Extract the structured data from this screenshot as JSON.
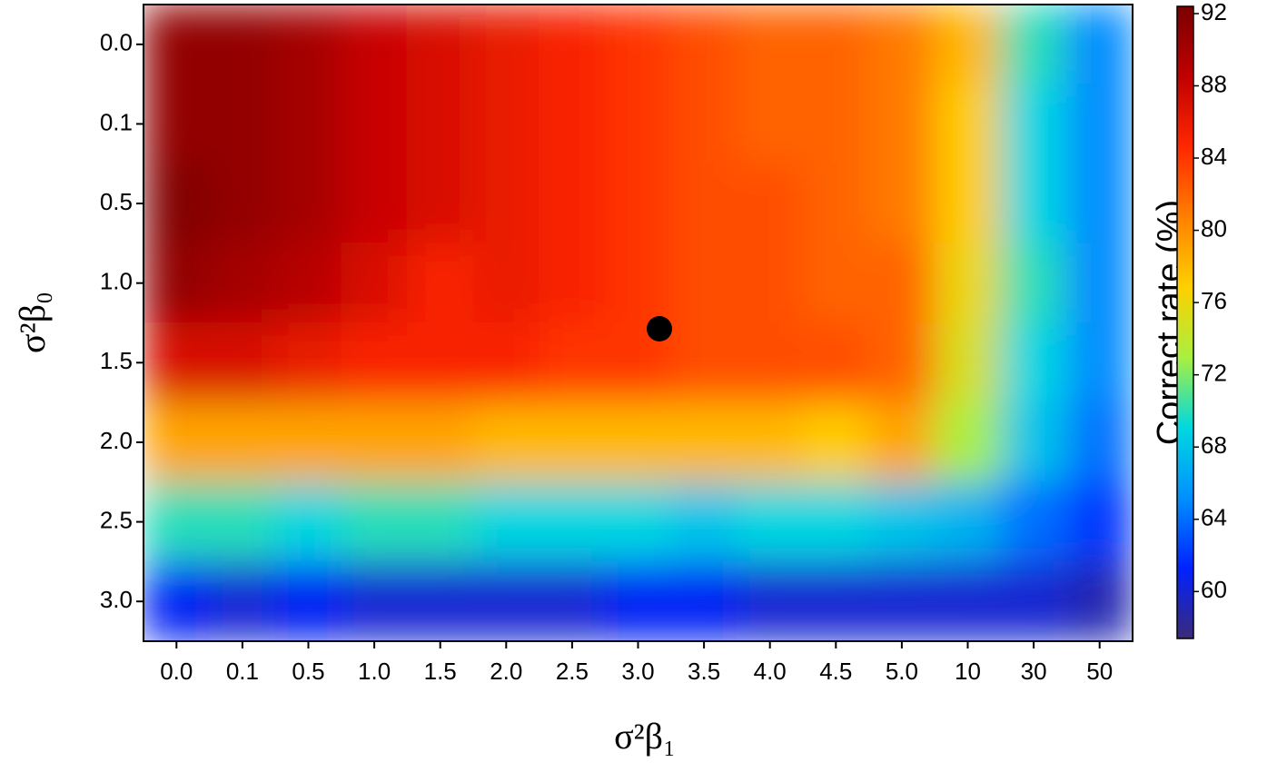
{
  "chart_data": {
    "type": "heatmap",
    "x_label": "σ²β₁",
    "y_label": "σ²β₀",
    "colorbar_label": "Correct rate (%)",
    "x_categories": [
      "0.0",
      "0.1",
      "0.5",
      "1.0",
      "1.5",
      "2.0",
      "2.5",
      "3.0",
      "3.5",
      "4.0",
      "4.5",
      "5.0",
      "10",
      "30",
      "50"
    ],
    "y_categories": [
      "0.0",
      "0.1",
      "0.5",
      "1.0",
      "1.5",
      "2.0",
      "2.5",
      "3.0"
    ],
    "values": [
      [
        91,
        91,
        90,
        88,
        87,
        86,
        85,
        84,
        83,
        82,
        82,
        81,
        78,
        70,
        65
      ],
      [
        91,
        91,
        90,
        88,
        87,
        86,
        85,
        84,
        83,
        82,
        82,
        81,
        77,
        69,
        65
      ],
      [
        92,
        91,
        90,
        88,
        87,
        86,
        85,
        84,
        83,
        83,
        82,
        81,
        77,
        69,
        65
      ],
      [
        91,
        90,
        89,
        87,
        85,
        86,
        85,
        84,
        83,
        83,
        82,
        82,
        76,
        70,
        65
      ],
      [
        87,
        87,
        86,
        85,
        85,
        85,
        84,
        84,
        83,
        83,
        83,
        82,
        75,
        69,
        65
      ],
      [
        79,
        79,
        79,
        79,
        79,
        78,
        78,
        78,
        78,
        78,
        77,
        79,
        73,
        68,
        64
      ],
      [
        70,
        70,
        69,
        70,
        70,
        69,
        69,
        69,
        68,
        69,
        69,
        68,
        67,
        64,
        62
      ],
      [
        61,
        60,
        61,
        60,
        60,
        60,
        60,
        61,
        61,
        60,
        60,
        60,
        60,
        60,
        59
      ]
    ],
    "zlim": [
      57.4,
      92.4
    ],
    "zticks": [
      60,
      64,
      68,
      72,
      76,
      80,
      84,
      88,
      92
    ],
    "colorscale": [
      "#3b2a78",
      "#0022ff",
      "#0090ff",
      "#00d8e0",
      "#a8f040",
      "#ffd000",
      "#ff8000",
      "#ff2800",
      "#c00000",
      "#7a0000"
    ]
  }
}
